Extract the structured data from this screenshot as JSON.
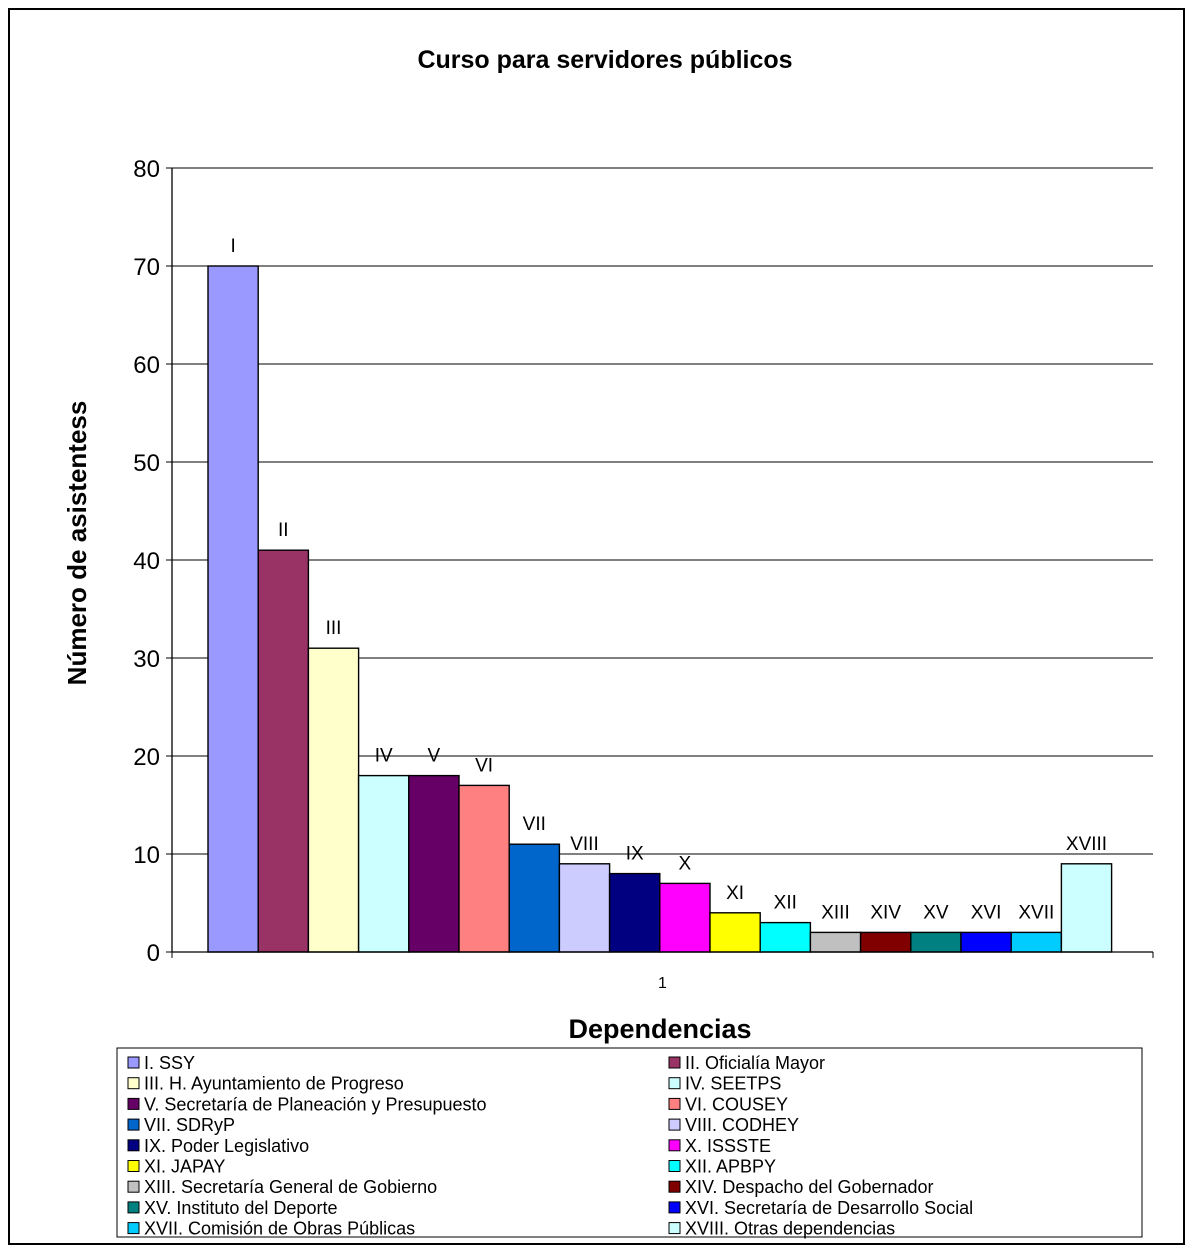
{
  "chart_data": {
    "type": "bar",
    "title": "Curso para servidores públicos",
    "xlabel": "Dependencias",
    "ylabel": "Número de asistentess",
    "categories": [
      "1"
    ],
    "ylim": [
      0,
      80
    ],
    "yticks": [
      0,
      10,
      20,
      30,
      40,
      50,
      60,
      70,
      80
    ],
    "grid": true,
    "legend_position": "bottom",
    "series": [
      {
        "name": "I.  SSY",
        "label": "I",
        "values": [
          70
        ],
        "color": "#9999ff"
      },
      {
        "name": "II. Oficialía Mayor",
        "label": "II",
        "values": [
          41
        ],
        "color": "#993366"
      },
      {
        "name": "III. H. Ayuntamiento de Progreso",
        "label": "III",
        "values": [
          31
        ],
        "color": "#ffffcc"
      },
      {
        "name": "IV. SEETPS",
        "label": "IV",
        "values": [
          18
        ],
        "color": "#ccffff"
      },
      {
        "name": "V. Secretaría de Planeación y Presupuesto",
        "label": "V",
        "values": [
          18
        ],
        "color": "#660066"
      },
      {
        "name": "VI. COUSEY",
        "label": "VI",
        "values": [
          17
        ],
        "color": "#ff8080"
      },
      {
        "name": "VII. SDRyP",
        "label": "VII",
        "values": [
          11
        ],
        "color": "#0066cc"
      },
      {
        "name": "VIII. CODHEY",
        "label": "VIII",
        "values": [
          9
        ],
        "color": "#ccccff"
      },
      {
        "name": "IX. Poder Legislativo",
        "label": "IX",
        "values": [
          8
        ],
        "color": "#000080"
      },
      {
        "name": "X. ISSSTE",
        "label": "X",
        "values": [
          7
        ],
        "color": "#ff00ff"
      },
      {
        "name": "XI. JAPAY",
        "label": "XI",
        "values": [
          4
        ],
        "color": "#ffff00"
      },
      {
        "name": "XII. APBPY",
        "label": "XII",
        "values": [
          3
        ],
        "color": "#00ffff"
      },
      {
        "name": "XIII. Secretaría General de Gobierno",
        "label": "XIII",
        "values": [
          2
        ],
        "color": "#c0c0c0"
      },
      {
        "name": "XIV. Despacho del Gobernador",
        "label": "XIV",
        "values": [
          2
        ],
        "color": "#800000"
      },
      {
        "name": "XV. Instituto del Deporte",
        "label": "XV",
        "values": [
          2
        ],
        "color": "#008080"
      },
      {
        "name": "XVI. Secretaría de Desarrollo Social",
        "label": "XVI",
        "values": [
          2
        ],
        "color": "#0000ff"
      },
      {
        "name": "XVII. Comisión de Obras Públicas",
        "label": "XVII",
        "values": [
          2
        ],
        "color": "#00ccff"
      },
      {
        "name": "XVIII. Otras dependencias",
        "label": "XVIII",
        "values": [
          9
        ],
        "color": "#ccffff"
      }
    ]
  }
}
